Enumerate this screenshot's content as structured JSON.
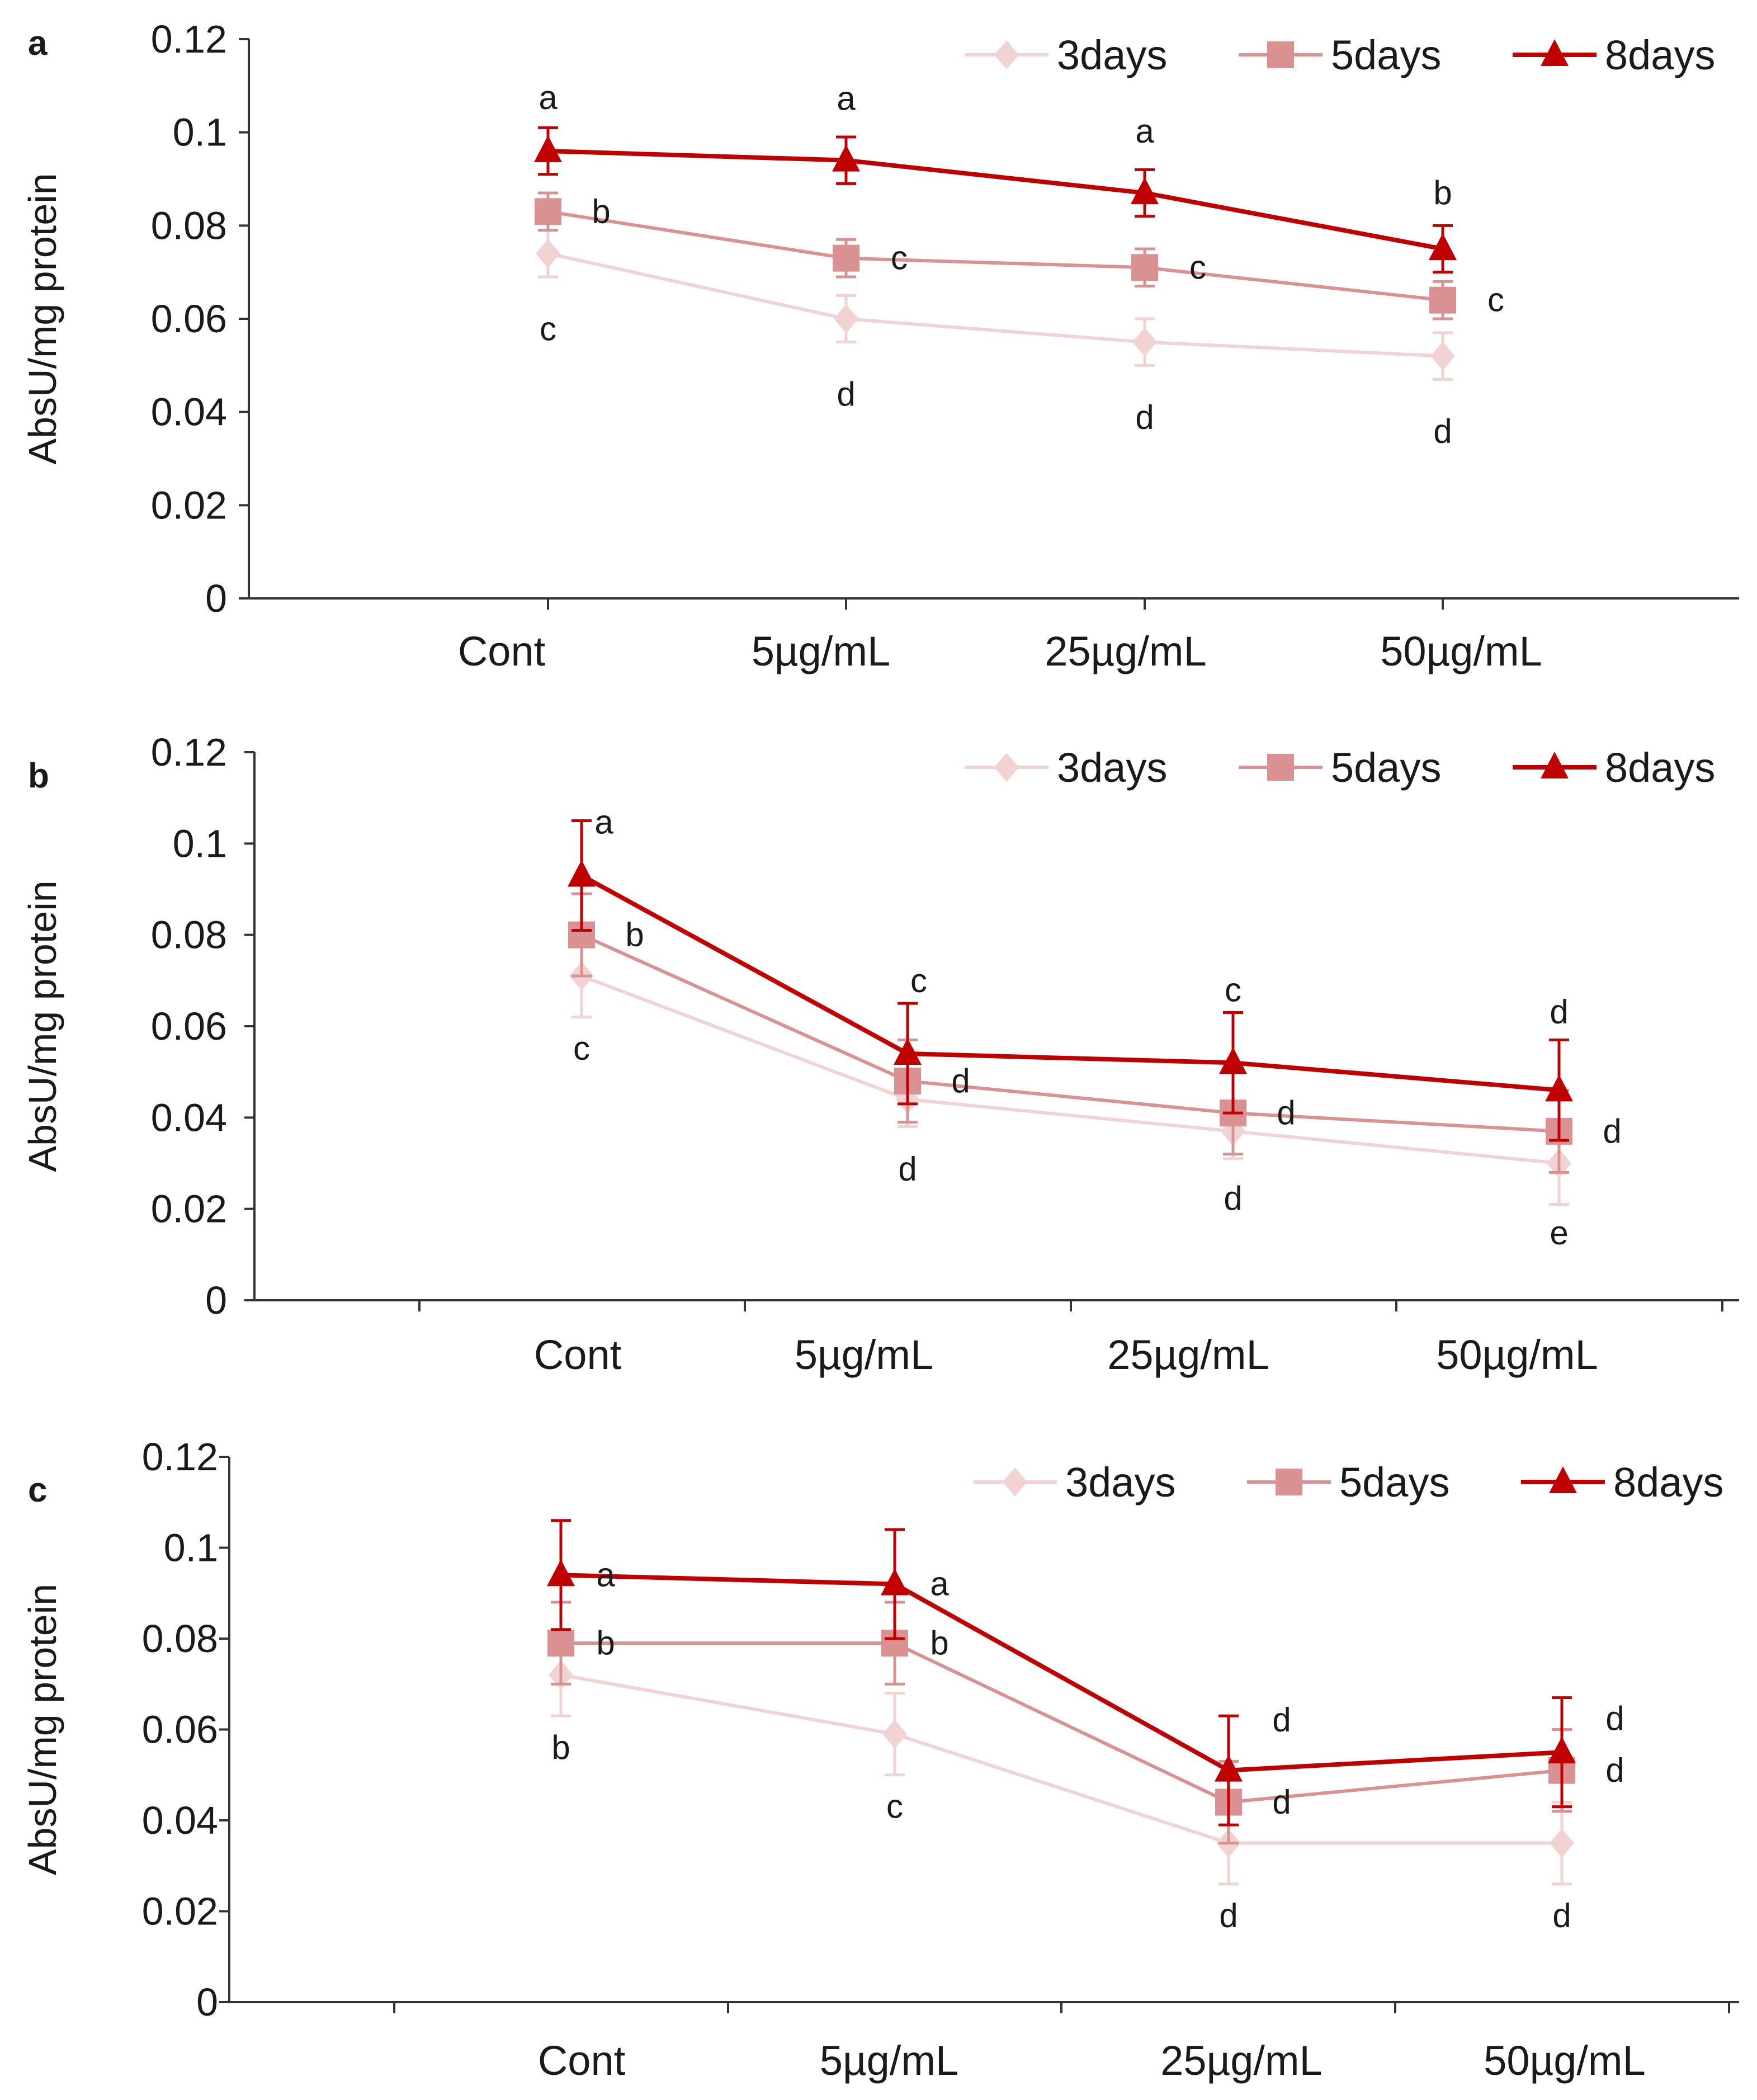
{
  "colors": {
    "series_3days": "#f2d3d3",
    "series_5days": "#da9191",
    "series_8days": "#c00000",
    "axis": "#333333",
    "text": "#1a1a1a"
  },
  "chart_data": [
    {
      "type": "line",
      "panel_label": "a",
      "ylabel": "AbsU/mg protein",
      "xlabel": "",
      "ylim": [
        0,
        0.12
      ],
      "yticks": [
        "0",
        "0.02",
        "0.04",
        "0.06",
        "0.08",
        "0.1",
        "0.12"
      ],
      "categories": [
        "Cont",
        "5µg/mL",
        "25µg/mL",
        "50µg/mL"
      ],
      "legend_position": "top-right",
      "series": [
        {
          "name": "3days",
          "marker": "diamond",
          "values": [
            0.074,
            0.06,
            0.055,
            0.052
          ],
          "errors": [
            0.005,
            0.005,
            0.005,
            0.005
          ],
          "letters": [
            "c",
            "d",
            "d",
            "d"
          ]
        },
        {
          "name": "5days",
          "marker": "square",
          "values": [
            0.083,
            0.073,
            0.071,
            0.064
          ],
          "errors": [
            0.004,
            0.004,
            0.004,
            0.004
          ],
          "letters": [
            "b",
            "c",
            "c",
            "c"
          ]
        },
        {
          "name": "8days",
          "marker": "triangle",
          "values": [
            0.096,
            0.094,
            0.087,
            0.075
          ],
          "errors": [
            0.005,
            0.005,
            0.005,
            0.005
          ],
          "letters": [
            "a",
            "a",
            "a",
            "b"
          ]
        }
      ]
    },
    {
      "type": "line",
      "panel_label": "b",
      "ylabel": "AbsU/mg protein",
      "xlabel": "",
      "ylim": [
        0,
        0.12
      ],
      "yticks": [
        "0",
        "0.02",
        "0.04",
        "0.06",
        "0.08",
        "0.1",
        "0.12"
      ],
      "categories": [
        "Cont",
        "5µg/mL",
        "25µg/mL",
        "50µg/mL"
      ],
      "legend_position": "top-right",
      "series": [
        {
          "name": "3days",
          "marker": "diamond",
          "values": [
            0.071,
            0.044,
            0.037,
            0.03
          ],
          "errors": [
            0.009,
            0.006,
            0.006,
            0.009
          ],
          "letters": [
            "c",
            "d",
            "d",
            "e"
          ]
        },
        {
          "name": "5days",
          "marker": "square",
          "values": [
            0.08,
            0.048,
            0.041,
            0.037
          ],
          "errors": [
            0.009,
            0.009,
            0.009,
            0.009
          ],
          "letters": [
            "b",
            "d",
            "d",
            "d"
          ]
        },
        {
          "name": "8days",
          "marker": "triangle",
          "values": [
            0.093,
            0.054,
            0.052,
            0.046
          ],
          "errors": [
            0.012,
            0.011,
            0.011,
            0.011
          ],
          "letters": [
            "a",
            "c",
            "c",
            "d"
          ]
        }
      ]
    },
    {
      "type": "line",
      "panel_label": "c",
      "ylabel": "AbsU/mg protein",
      "xlabel": "",
      "ylim": [
        0,
        0.12
      ],
      "yticks": [
        "0",
        "0.02",
        "0.04",
        "0.06",
        "0.08",
        "0.1",
        "0.12"
      ],
      "categories": [
        "Cont",
        "5µg/mL",
        "25µg/mL",
        "50µg/mL"
      ],
      "legend_position": "top-right",
      "series": [
        {
          "name": "3days",
          "marker": "diamond",
          "values": [
            0.072,
            0.059,
            0.035,
            0.035
          ],
          "errors": [
            0.009,
            0.009,
            0.009,
            0.009
          ],
          "letters": [
            "b",
            "c",
            "d",
            "d"
          ]
        },
        {
          "name": "5days",
          "marker": "square",
          "values": [
            0.079,
            0.079,
            0.044,
            0.051
          ],
          "errors": [
            0.009,
            0.009,
            0.009,
            0.009
          ],
          "letters": [
            "b",
            "b",
            "d",
            "d"
          ]
        },
        {
          "name": "8days",
          "marker": "triangle",
          "values": [
            0.094,
            0.092,
            0.051,
            0.055
          ],
          "errors": [
            0.012,
            0.012,
            0.012,
            0.012
          ],
          "letters": [
            "a",
            "a",
            "d",
            "d"
          ]
        }
      ]
    }
  ]
}
